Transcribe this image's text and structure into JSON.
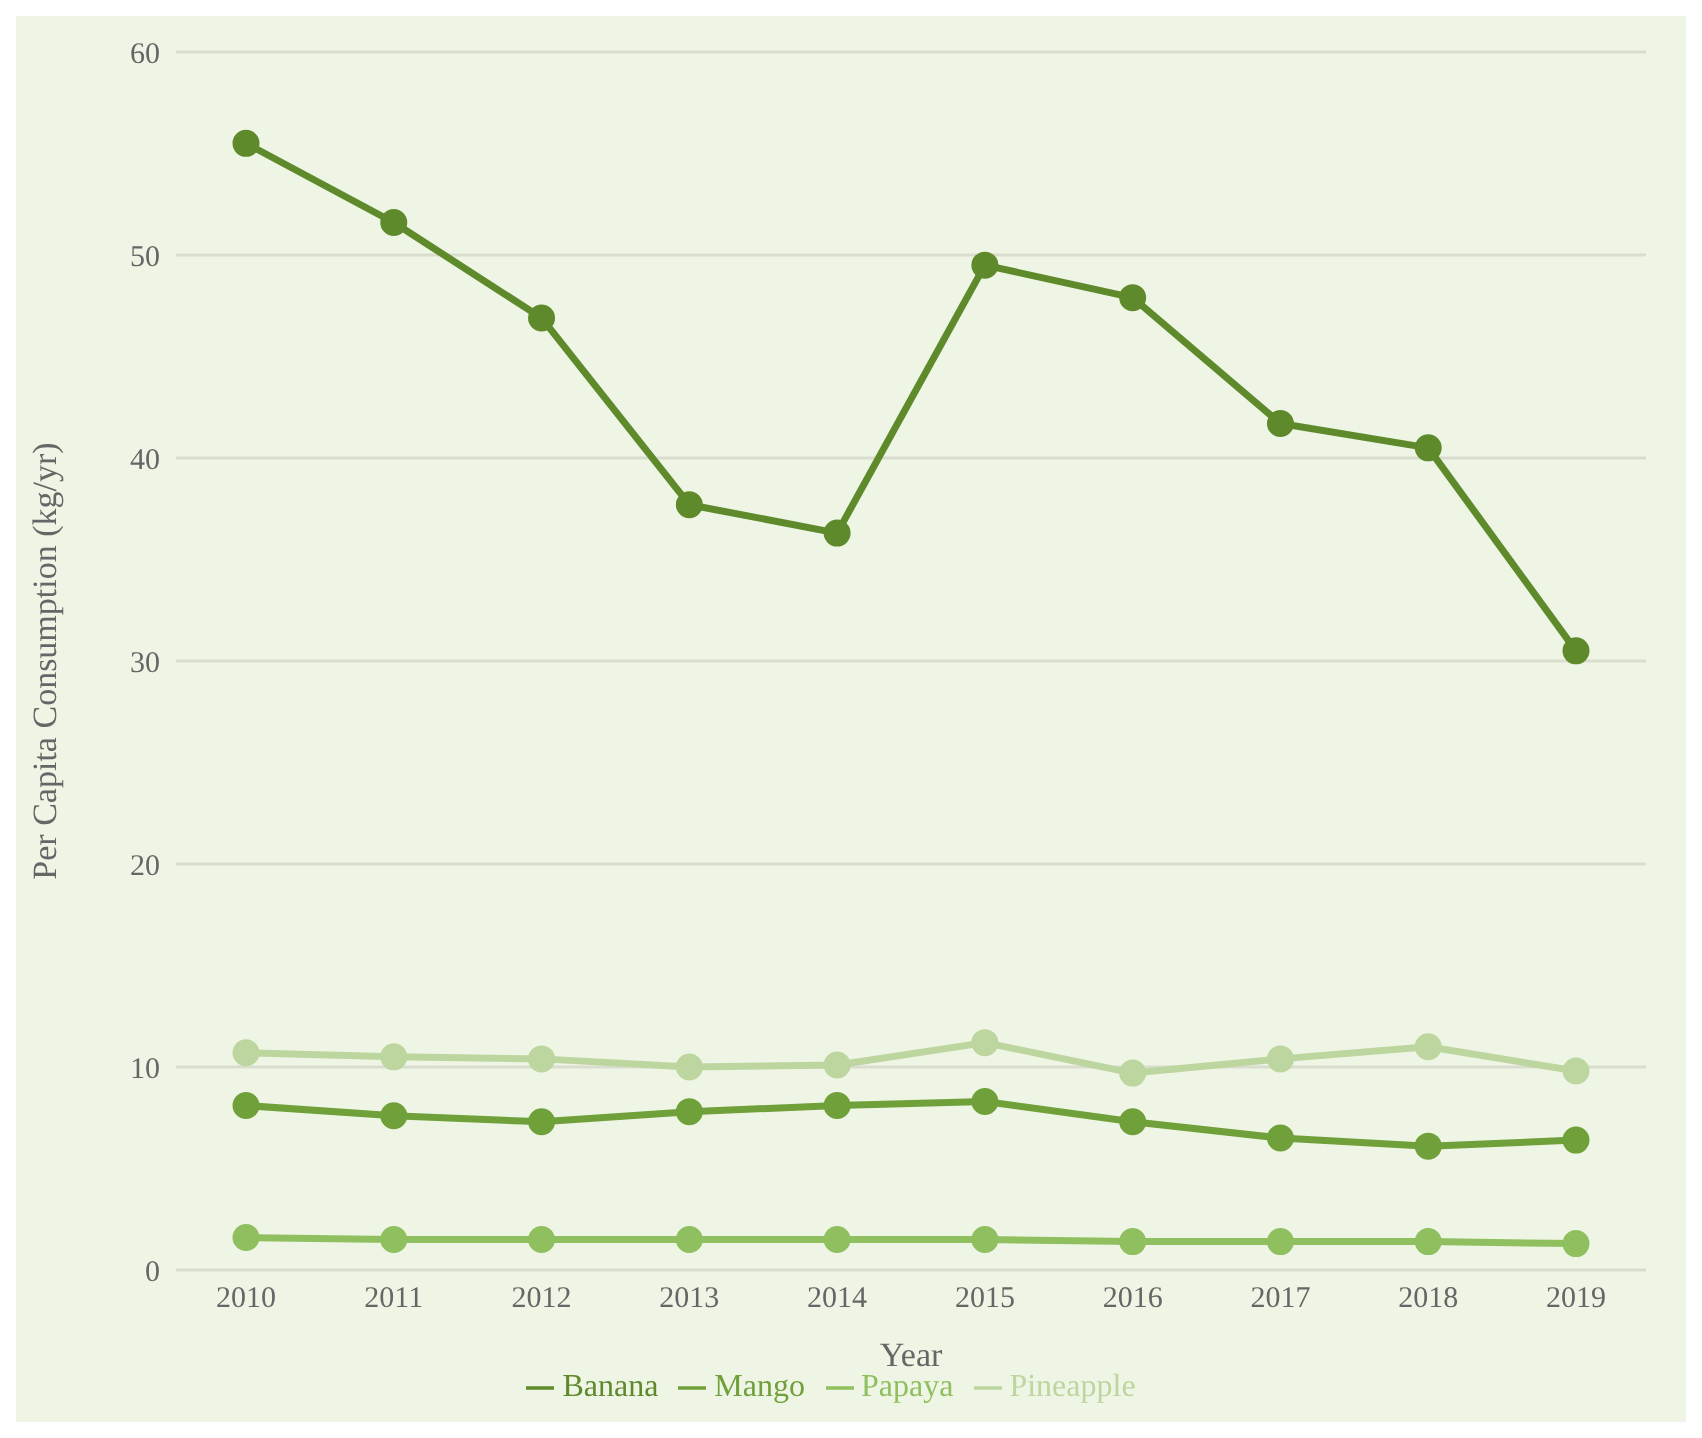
{
  "chart_data": {
    "type": "line",
    "xlabel": "Year",
    "ylabel": "Per Capita Consumption (kg/yr)",
    "categories": [
      "2010",
      "2011",
      "2012",
      "2013",
      "2014",
      "2015",
      "2016",
      "2017",
      "2018",
      "2019"
    ],
    "series": [
      {
        "name": "Banana",
        "color": "#5e8a2c",
        "values": [
          55.5,
          51.6,
          46.9,
          37.7,
          36.3,
          49.5,
          47.9,
          41.7,
          40.5,
          30.5
        ]
      },
      {
        "name": "Mango",
        "color": "#6fa03a",
        "values": [
          8.1,
          7.6,
          7.3,
          7.8,
          8.1,
          8.3,
          7.3,
          6.5,
          6.1,
          6.4
        ]
      },
      {
        "name": "Papaya",
        "color": "#8fbf5e",
        "values": [
          1.6,
          1.5,
          1.5,
          1.5,
          1.5,
          1.5,
          1.4,
          1.4,
          1.4,
          1.3
        ]
      },
      {
        "name": "Pineapple",
        "color": "#bdd6a0",
        "values": [
          10.7,
          10.5,
          10.4,
          10.0,
          10.1,
          11.2,
          9.7,
          10.4,
          11.0,
          9.8
        ]
      }
    ],
    "ylim": [
      0,
      60
    ],
    "yticks": [
      0,
      10,
      20,
      30,
      40,
      50,
      60
    ],
    "grid": "y",
    "legend": "bottom",
    "marker": "circle",
    "line_style": "solid"
  }
}
